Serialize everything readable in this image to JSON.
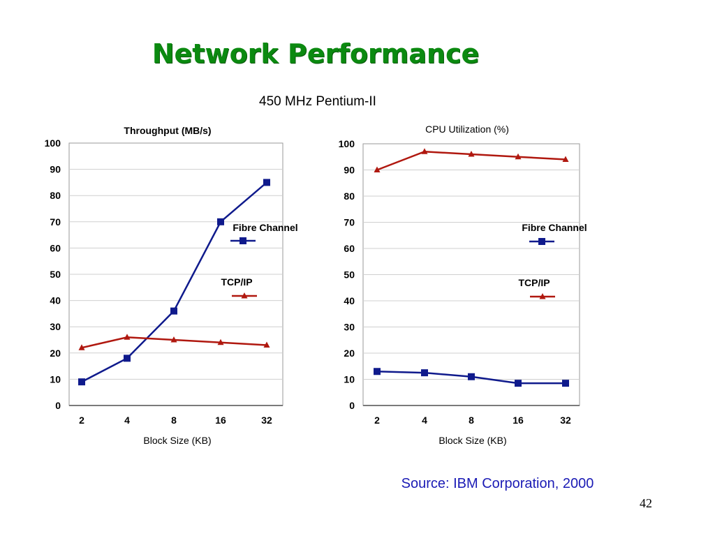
{
  "title": "Network Performance",
  "subtitle": "450 MHz Pentium-II",
  "source": "Source: IBM Corporation, 2000",
  "page_number": "42",
  "colors": {
    "title": "#0b8a10",
    "fibre_channel": "#0f1a8c",
    "tcp_ip": "#b0180f",
    "source": "#1b1bb5",
    "grid": "#cfcfcf"
  },
  "chart_data": [
    {
      "type": "line",
      "title": "Throughput (MB/s)",
      "xlabel": "Block Size (KB)",
      "ylabel": "",
      "categories": [
        "2",
        "4",
        "8",
        "16",
        "32"
      ],
      "ylim": [
        0,
        100
      ],
      "yticks": [
        0,
        10,
        20,
        30,
        40,
        50,
        60,
        70,
        80,
        90,
        100
      ],
      "grid": true,
      "legend_position": "middle-right",
      "series": [
        {
          "name": "Fibre Channel",
          "marker": "square",
          "values": [
            9,
            18,
            36,
            70,
            85
          ]
        },
        {
          "name": "TCP/IP",
          "marker": "triangle",
          "values": [
            22,
            26,
            25,
            24,
            23
          ]
        }
      ]
    },
    {
      "type": "line",
      "title": "CPU Utilization (%)",
      "xlabel": "Block Size (KB)",
      "ylabel": "",
      "categories": [
        "2",
        "4",
        "8",
        "16",
        "32"
      ],
      "ylim": [
        0,
        100
      ],
      "yticks": [
        0,
        10,
        20,
        30,
        40,
        50,
        60,
        70,
        80,
        90,
        100
      ],
      "grid": true,
      "legend_position": "middle-right",
      "series": [
        {
          "name": "Fibre Channel",
          "marker": "square",
          "values": [
            13,
            12.5,
            11,
            8.5,
            8.5
          ]
        },
        {
          "name": "TCP/IP",
          "marker": "triangle",
          "values": [
            90,
            97,
            96,
            95,
            94
          ]
        }
      ]
    }
  ]
}
